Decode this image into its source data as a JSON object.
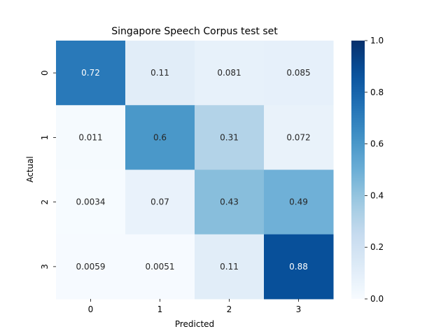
{
  "chart_data": {
    "type": "heatmap",
    "title": "Singapore Speech Corpus test set",
    "xlabel": "Predicted",
    "ylabel": "Actual",
    "x_categories": [
      "0",
      "1",
      "2",
      "3"
    ],
    "y_categories": [
      "0",
      "1",
      "2",
      "3"
    ],
    "values": [
      [
        0.72,
        0.11,
        0.081,
        0.085
      ],
      [
        0.011,
        0.6,
        0.31,
        0.072
      ],
      [
        0.0034,
        0.07,
        0.43,
        0.49
      ],
      [
        0.0059,
        0.0051,
        0.11,
        0.88
      ]
    ],
    "value_labels": [
      [
        "0.72",
        "0.11",
        "0.081",
        "0.085"
      ],
      [
        "0.011",
        "0.6",
        "0.31",
        "0.072"
      ],
      [
        "0.0034",
        "0.07",
        "0.43",
        "0.49"
      ],
      [
        "0.0059",
        "0.0051",
        "0.11",
        "0.88"
      ]
    ],
    "colorbar": {
      "colormap": "Blues",
      "range": [
        0.0,
        1.0
      ],
      "ticks": [
        "0.0",
        "0.2",
        "0.4",
        "0.6",
        "0.8",
        "1.0"
      ]
    }
  }
}
